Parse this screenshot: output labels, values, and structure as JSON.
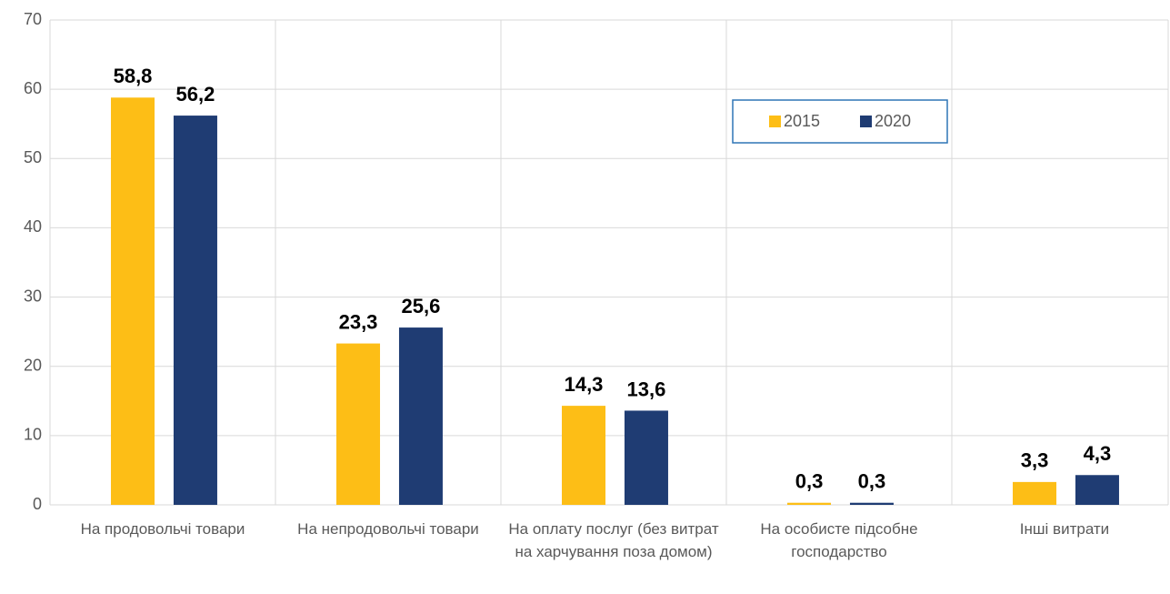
{
  "chart_data": {
    "type": "bar",
    "categories": [
      "На продовольчі товари",
      "На непродовольчі товари",
      "На оплату послуг (без витрат на харчування поза домом)",
      "На особисте підсобне господарство",
      "Інші витрати"
    ],
    "series": [
      {
        "name": "2015",
        "color": "#fdbe16",
        "values": [
          58.8,
          23.3,
          14.3,
          0.3,
          3.3
        ],
        "value_labels": [
          "58,8",
          "23,3",
          "14,3",
          "0,3",
          "3,3"
        ]
      },
      {
        "name": "2020",
        "color": "#1f3c73",
        "values": [
          56.2,
          25.6,
          13.6,
          0.3,
          4.3
        ],
        "value_labels": [
          "56,2",
          "25,6",
          "13,6",
          "0,3",
          "4,3"
        ]
      }
    ],
    "ylim": [
      0,
      70
    ],
    "yticks": [
      0,
      10,
      20,
      30,
      40,
      50,
      60,
      70
    ],
    "grid": true,
    "legend": "upper right"
  }
}
